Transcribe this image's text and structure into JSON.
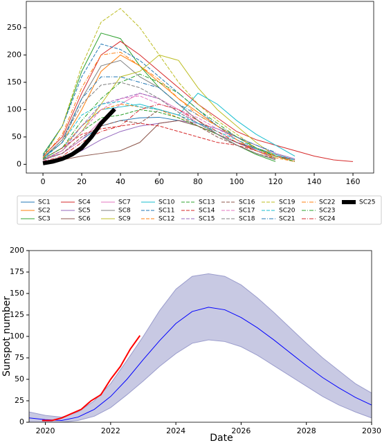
{
  "chart_data": [
    {
      "type": "line",
      "x": [
        0,
        10,
        20,
        30,
        40,
        50,
        60,
        70,
        80,
        90,
        100,
        110,
        120,
        130,
        140,
        150,
        160
      ],
      "xlim": [
        -8.6,
        170.7
      ],
      "ylim": [
        -16,
        298
      ],
      "xticks": [
        0,
        20,
        40,
        60,
        80,
        100,
        120,
        140,
        160
      ],
      "yticks": [
        0,
        50,
        100,
        150,
        200,
        250
      ],
      "series": [
        {
          "name": "SC1",
          "color": "#1f77b4",
          "dash": "solid",
          "values": [
            8,
            20,
            45,
            70,
            80,
            85,
            86,
            80,
            70,
            55,
            40,
            28,
            15,
            8,
            null,
            null,
            null
          ]
        },
        {
          "name": "SC2",
          "color": "#ff7f0e",
          "dash": "solid",
          "values": [
            12,
            40,
            100,
            170,
            200,
            180,
            150,
            120,
            95,
            70,
            50,
            30,
            15,
            5,
            null,
            null,
            null
          ]
        },
        {
          "name": "SC3",
          "color": "#2ca02c",
          "dash": "solid",
          "values": [
            18,
            70,
            170,
            240,
            230,
            180,
            140,
            110,
            80,
            55,
            35,
            18,
            5,
            null,
            null,
            null,
            null
          ]
        },
        {
          "name": "SC4",
          "color": "#d62728",
          "dash": "solid",
          "values": [
            15,
            50,
            130,
            200,
            225,
            200,
            170,
            140,
            110,
            85,
            60,
            45,
            35,
            25,
            15,
            8,
            5
          ]
        },
        {
          "name": "SC5",
          "color": "#9467bd",
          "dash": "solid",
          "values": [
            3,
            10,
            25,
            45,
            60,
            70,
            75,
            80,
            75,
            65,
            50,
            35,
            20,
            10,
            null,
            null,
            null
          ]
        },
        {
          "name": "SC6",
          "color": "#8c564b",
          "dash": "solid",
          "values": [
            5,
            8,
            15,
            20,
            25,
            40,
            75,
            80,
            70,
            55,
            40,
            30,
            18,
            8,
            null,
            null,
            null
          ]
        },
        {
          "name": "SC7",
          "color": "#e377c2",
          "dash": "solid",
          "values": [
            10,
            20,
            45,
            80,
            110,
            130,
            120,
            100,
            75,
            55,
            40,
            25,
            12,
            null,
            null,
            null,
            null
          ]
        },
        {
          "name": "SC8",
          "color": "#7f7f7f",
          "dash": "solid",
          "values": [
            12,
            45,
            120,
            180,
            190,
            160,
            140,
            110,
            80,
            55,
            35,
            20,
            8,
            null,
            null,
            null,
            null
          ]
        },
        {
          "name": "SC9",
          "color": "#bcbd22",
          "dash": "solid",
          "values": [
            8,
            25,
            60,
            110,
            160,
            170,
            200,
            190,
            140,
            100,
            70,
            40,
            15,
            null,
            null,
            null,
            null
          ]
        },
        {
          "name": "SC10",
          "color": "#17becf",
          "dash": "solid",
          "values": [
            10,
            30,
            70,
            100,
            105,
            110,
            100,
            90,
            130,
            110,
            80,
            55,
            35,
            15,
            null,
            null,
            null
          ]
        },
        {
          "name": "SC11",
          "color": "#1f77b4",
          "dash": "dashed",
          "values": [
            15,
            70,
            160,
            220,
            210,
            190,
            160,
            130,
            100,
            70,
            45,
            25,
            10,
            null,
            null,
            null,
            null
          ]
        },
        {
          "name": "SC12",
          "color": "#ff7f0e",
          "dash": "dashed",
          "values": [
            10,
            30,
            70,
            100,
            110,
            105,
            100,
            85,
            70,
            55,
            40,
            25,
            12,
            5,
            null,
            null,
            null
          ]
        },
        {
          "name": "SC13",
          "color": "#2ca02c",
          "dash": "dashed",
          "values": [
            8,
            25,
            60,
            85,
            90,
            100,
            95,
            85,
            70,
            55,
            40,
            25,
            12,
            null,
            null,
            null,
            null
          ]
        },
        {
          "name": "SC14",
          "color": "#d62728",
          "dash": "dashed",
          "values": [
            10,
            30,
            55,
            65,
            70,
            75,
            70,
            60,
            50,
            40,
            35,
            25,
            15,
            8,
            null,
            null,
            null
          ]
        },
        {
          "name": "SC15",
          "color": "#9467bd",
          "dash": "dashed",
          "values": [
            8,
            25,
            70,
            110,
            120,
            130,
            120,
            95,
            75,
            55,
            40,
            25,
            10,
            null,
            null,
            null,
            null
          ]
        },
        {
          "name": "SC16",
          "color": "#8c564b",
          "dash": "dashed",
          "values": [
            8,
            20,
            50,
            70,
            80,
            75,
            100,
            90,
            70,
            50,
            35,
            20,
            10,
            null,
            null,
            null,
            null
          ]
        },
        {
          "name": "SC17",
          "color": "#e377c2",
          "dash": "dashed",
          "values": [
            5,
            25,
            60,
            100,
            120,
            125,
            110,
            100,
            85,
            65,
            45,
            25,
            12,
            null,
            null,
            null,
            null
          ]
        },
        {
          "name": "SC18",
          "color": "#7f7f7f",
          "dash": "dashed",
          "values": [
            10,
            45,
            110,
            145,
            150,
            140,
            120,
            95,
            75,
            55,
            35,
            20,
            8,
            null,
            null,
            null,
            null
          ]
        },
        {
          "name": "SC19",
          "color": "#bcbd22",
          "dash": "dashed",
          "values": [
            12,
            70,
            180,
            260,
            285,
            250,
            200,
            150,
            110,
            80,
            55,
            30,
            12,
            null,
            null,
            null,
            null
          ]
        },
        {
          "name": "SC20",
          "color": "#17becf",
          "dash": "dashed",
          "values": [
            10,
            40,
            90,
            110,
            115,
            105,
            100,
            90,
            75,
            60,
            45,
            30,
            18,
            8,
            null,
            null,
            null
          ]
        },
        {
          "name": "SC21",
          "color": "#1f77b4",
          "dash": "dashdot",
          "values": [
            12,
            40,
            120,
            160,
            160,
            150,
            140,
            110,
            90,
            70,
            50,
            35,
            22,
            null,
            null,
            null,
            null
          ]
        },
        {
          "name": "SC22",
          "color": "#ff7f0e",
          "dash": "dashdot",
          "values": [
            12,
            55,
            140,
            200,
            205,
            180,
            155,
            120,
            90,
            70,
            45,
            25,
            10,
            null,
            null,
            null,
            null
          ]
        },
        {
          "name": "SC23",
          "color": "#2ca02c",
          "dash": "dashdot",
          "values": [
            10,
            30,
            80,
            120,
            150,
            165,
            150,
            130,
            100,
            75,
            50,
            30,
            15,
            5,
            null,
            null,
            null
          ]
        },
        {
          "name": "SC24",
          "color": "#d62728",
          "dash": "dashdot",
          "values": [
            5,
            15,
            40,
            60,
            70,
            100,
            110,
            100,
            80,
            60,
            40,
            25,
            null,
            null,
            null,
            null,
            null
          ]
        },
        {
          "name": "SC25",
          "color": "#000000",
          "dash": "thick",
          "x": [
            0,
            5,
            10,
            15,
            20,
            25,
            30,
            37
          ],
          "values": [
            2,
            5,
            10,
            18,
            30,
            50,
            75,
            101
          ]
        }
      ]
    },
    {
      "type": "line",
      "x_label": "Date",
      "y_label": "Sunspot number",
      "xlim": [
        2019.5,
        2030
      ],
      "ylim": [
        0,
        200
      ],
      "xticks": [
        2020,
        2022,
        2024,
        2026,
        2028,
        2030
      ],
      "yticks": [
        0,
        25,
        50,
        75,
        100,
        125,
        150,
        175,
        200
      ],
      "x": [
        2019.5,
        2020,
        2020.5,
        2021,
        2021.5,
        2022,
        2022.5,
        2023,
        2023.5,
        2024,
        2024.5,
        2025,
        2025.5,
        2026,
        2026.5,
        2027,
        2027.5,
        2028,
        2028.5,
        2029,
        2029.5,
        2030
      ],
      "series": [
        {
          "color": "#0000ff",
          "values": [
            5,
            3,
            2,
            6,
            15,
            30,
            50,
            73,
            95,
            115,
            129,
            134,
            131,
            122,
            110,
            96,
            81,
            66,
            52,
            40,
            29,
            20
          ]
        }
      ],
      "band": {
        "color": "#9a9ccc",
        "upper": [
          12,
          8,
          6,
          12,
          25,
          45,
          72,
          100,
          130,
          155,
          170,
          173,
          170,
          160,
          145,
          128,
          110,
          92,
          75,
          60,
          45,
          34
        ],
        "lower": [
          0,
          0,
          0,
          2,
          7,
          17,
          32,
          48,
          65,
          80,
          92,
          96,
          94,
          88,
          78,
          66,
          54,
          42,
          30,
          20,
          12,
          5
        ]
      },
      "observed": {
        "color": "#ff0000",
        "x": [
          2019.9,
          2020.2,
          2020.5,
          2020.8,
          2021.1,
          2021.4,
          2021.7,
          2022,
          2022.3,
          2022.6,
          2022.9
        ],
        "values": [
          2,
          2,
          5,
          10,
          15,
          25,
          32,
          50,
          65,
          85,
          101
        ]
      }
    }
  ]
}
